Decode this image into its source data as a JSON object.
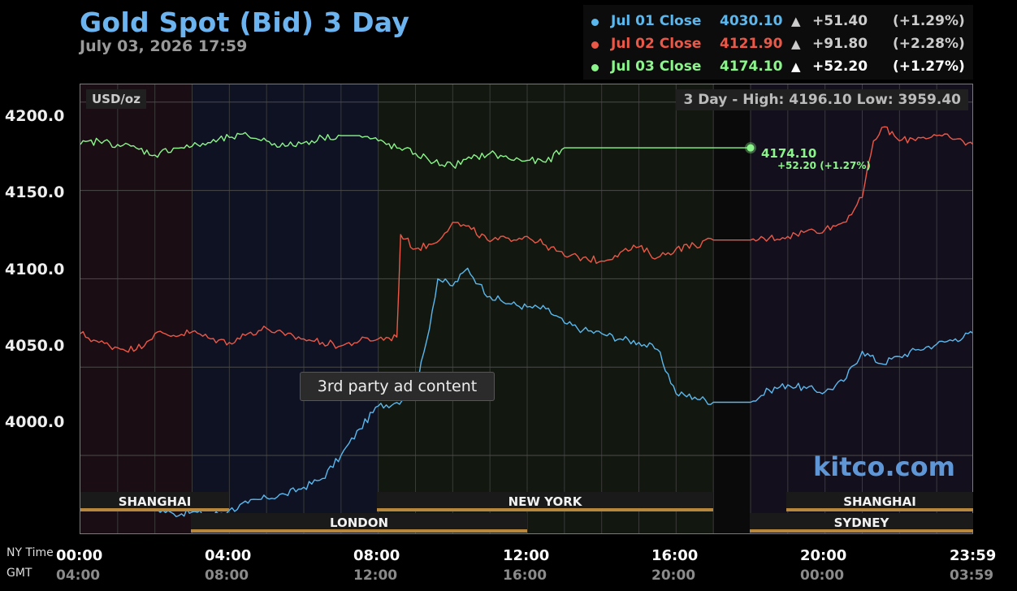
{
  "title": "Gold Spot (Bid) 3 Day",
  "subtitle": "July 03, 2026 17:59",
  "legend": [
    {
      "label": "Jul 01 Close",
      "value": "4030.10",
      "arrow": "▲",
      "change": "+51.40",
      "pct": "(+1.29%)",
      "color": "#5ab8ee"
    },
    {
      "label": "Jul 02 Close",
      "value": "4121.90",
      "arrow": "▲",
      "change": "+91.80",
      "pct": "(+2.28%)",
      "color": "#ea5848"
    },
    {
      "label": "Jul 03 Close",
      "value": "4174.10",
      "arrow": "▲",
      "change": "+52.20",
      "pct": "(+1.27%)",
      "color": "#8bf58b"
    }
  ],
  "unit_label": "USD/oz",
  "hilo_label": "3 Day - High: 4196.10  Low: 3959.40",
  "ad_label": "3rd party ad content",
  "brand": "kitco.com",
  "current": {
    "value": "4174.10",
    "change": "+52.20 (+1.27%)"
  },
  "markets": {
    "top": [
      "SHANGHAI",
      "NEW YORK",
      "SHANGHAI"
    ],
    "bottom": [
      "LONDON",
      "SYDNEY"
    ]
  },
  "axis_names": {
    "ny": "NY Time",
    "gmt": "GMT"
  },
  "chart_data": {
    "type": "line",
    "title": "Gold Spot (Bid) 3 Day",
    "ylabel": "USD/oz",
    "ylim": [
      3955,
      4210
    ],
    "y_ticks": [
      "4200.0",
      "4150.0",
      "4100.0",
      "4050.0",
      "4000.0"
    ],
    "y_tick_values": [
      4200,
      4150,
      4100,
      4050,
      4000
    ],
    "x_ticks_ny": [
      "00:00",
      "04:00",
      "08:00",
      "12:00",
      "16:00",
      "20:00",
      "23:59"
    ],
    "x_ticks_gmt": [
      "04:00",
      "08:00",
      "12:00",
      "16:00",
      "20:00",
      "00:00",
      "03:59"
    ],
    "x_tick_hours": [
      0,
      4,
      8,
      12,
      16,
      20,
      23.983
    ],
    "xlim_hours": [
      0,
      24
    ],
    "sessions": [
      {
        "from": 0,
        "to": 3,
        "tint": "#1b0d14"
      },
      {
        "from": 3,
        "to": 8,
        "tint": "#0e1222"
      },
      {
        "from": 8,
        "to": 17,
        "tint": "#12180f"
      },
      {
        "from": 17,
        "to": 18,
        "tint": "#0a0a0a"
      },
      {
        "from": 18,
        "to": 24,
        "tint": "#140f1c"
      }
    ],
    "series": [
      {
        "name": "Jul 01 Close",
        "color": "#5ab8ee",
        "points": [
          [
            0,
            3976
          ],
          [
            0.5,
            3973
          ],
          [
            1,
            3974
          ],
          [
            1.5,
            3972
          ],
          [
            2,
            3970
          ],
          [
            2.5,
            3967
          ],
          [
            3,
            3968
          ],
          [
            3.5,
            3966
          ],
          [
            4,
            3969
          ],
          [
            4.5,
            3973
          ],
          [
            5,
            3976
          ],
          [
            5.5,
            3978
          ],
          [
            6,
            3982
          ],
          [
            6.5,
            3987
          ],
          [
            7,
            4000
          ],
          [
            7.5,
            4015
          ],
          [
            8,
            4028
          ],
          [
            8.5,
            4030
          ],
          [
            9,
            4037
          ],
          [
            9.3,
            4065
          ],
          [
            9.6,
            4100
          ],
          [
            10,
            4096
          ],
          [
            10.4,
            4106
          ],
          [
            10.7,
            4097
          ],
          [
            11,
            4090
          ],
          [
            11.5,
            4086
          ],
          [
            12,
            4084
          ],
          [
            12.5,
            4083
          ],
          [
            13,
            4075
          ],
          [
            13.5,
            4071
          ],
          [
            14,
            4069
          ],
          [
            14.5,
            4066
          ],
          [
            15,
            4064
          ],
          [
            15.5,
            4060
          ],
          [
            16,
            4035
          ],
          [
            16.5,
            4033
          ],
          [
            17,
            4030.1
          ],
          [
            18,
            4030.1
          ],
          [
            18.5,
            4037
          ],
          [
            19,
            4040
          ],
          [
            19.5,
            4038
          ],
          [
            20,
            4036
          ],
          [
            20.5,
            4042
          ],
          [
            21,
            4059
          ],
          [
            21.5,
            4052
          ],
          [
            22,
            4056
          ],
          [
            22.5,
            4060
          ],
          [
            23,
            4063
          ],
          [
            23.5,
            4066
          ],
          [
            23.98,
            4069
          ]
        ]
      },
      {
        "name": "Jul 02 Close",
        "color": "#ea5848",
        "points": [
          [
            0,
            4069
          ],
          [
            0.5,
            4064
          ],
          [
            1,
            4061
          ],
          [
            1.5,
            4060
          ],
          [
            2,
            4069
          ],
          [
            2.5,
            4068
          ],
          [
            3,
            4070
          ],
          [
            3.5,
            4066
          ],
          [
            4,
            4064
          ],
          [
            4.5,
            4069
          ],
          [
            5,
            4072
          ],
          [
            5.5,
            4068
          ],
          [
            6,
            4066
          ],
          [
            6.5,
            4064
          ],
          [
            7,
            4062
          ],
          [
            7.5,
            4065
          ],
          [
            8,
            4066
          ],
          [
            8.5,
            4067
          ],
          [
            8.6,
            4125
          ],
          [
            9,
            4117
          ],
          [
            9.5,
            4120
          ],
          [
            10,
            4132
          ],
          [
            10.5,
            4128
          ],
          [
            11,
            4121
          ],
          [
            11.5,
            4123
          ],
          [
            12,
            4124
          ],
          [
            12.5,
            4119
          ],
          [
            13,
            4113
          ],
          [
            13.5,
            4112
          ],
          [
            14,
            4110
          ],
          [
            14.5,
            4115
          ],
          [
            15,
            4118
          ],
          [
            15.5,
            4112
          ],
          [
            16,
            4117
          ],
          [
            16.5,
            4119
          ],
          [
            17,
            4121.9
          ],
          [
            18,
            4121.9
          ],
          [
            18.5,
            4123
          ],
          [
            19,
            4124
          ],
          [
            19.5,
            4127
          ],
          [
            20,
            4128
          ],
          [
            20.5,
            4132
          ],
          [
            21,
            4146
          ],
          [
            21.3,
            4178
          ],
          [
            21.6,
            4186
          ],
          [
            22,
            4178
          ],
          [
            22.5,
            4180
          ],
          [
            23,
            4181
          ],
          [
            23.5,
            4179
          ],
          [
            23.98,
            4176
          ]
        ]
      },
      {
        "name": "Jul 03 Close",
        "color": "#8bf58b",
        "points": [
          [
            0,
            4176
          ],
          [
            0.5,
            4178
          ],
          [
            1,
            4176
          ],
          [
            1.5,
            4174
          ],
          [
            2,
            4170
          ],
          [
            2.5,
            4174
          ],
          [
            3,
            4175
          ],
          [
            3.5,
            4177
          ],
          [
            4,
            4180
          ],
          [
            4.5,
            4181
          ],
          [
            5,
            4178
          ],
          [
            5.5,
            4175
          ],
          [
            6,
            4177
          ],
          [
            6.5,
            4180
          ],
          [
            7,
            4181
          ],
          [
            7.5,
            4181
          ],
          [
            8,
            4178
          ],
          [
            8.5,
            4174
          ],
          [
            9,
            4171
          ],
          [
            9.5,
            4166
          ],
          [
            10,
            4164
          ],
          [
            10.5,
            4168
          ],
          [
            11,
            4171
          ],
          [
            11.5,
            4168
          ],
          [
            12,
            4167
          ],
          [
            12.5,
            4166
          ],
          [
            13,
            4174.1
          ],
          [
            18,
            4174.1
          ]
        ]
      }
    ]
  }
}
